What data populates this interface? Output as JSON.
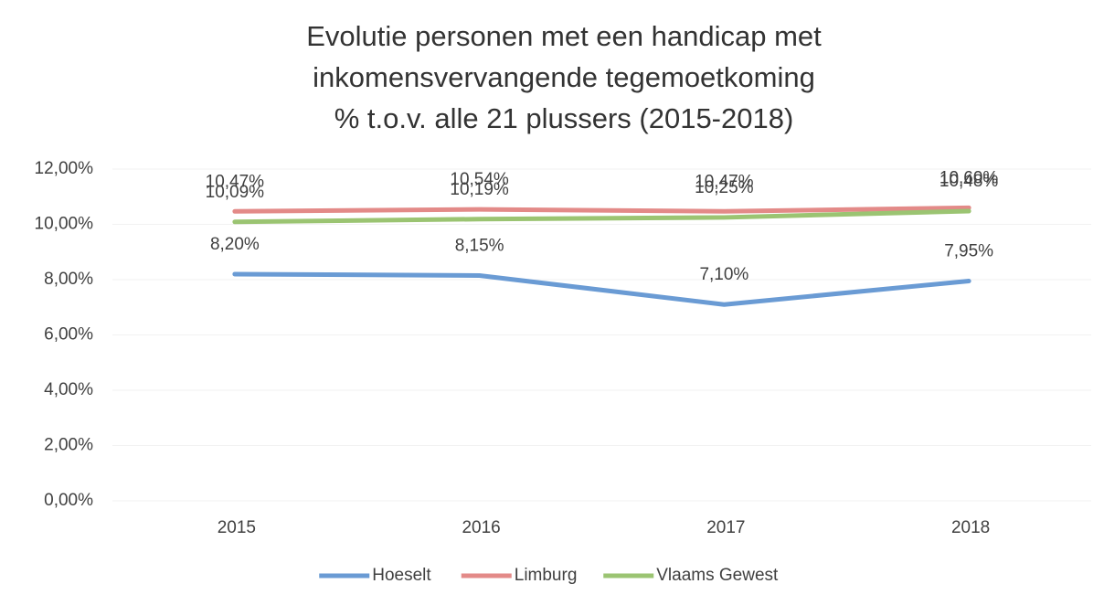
{
  "chart_data": {
    "type": "line",
    "title": [
      "Evolutie personen met een handicap met",
      "inkomensvervangende tegemoetkoming",
      "% t.o.v. alle 21 plussers (2015-2018)"
    ],
    "categories": [
      "2015",
      "2016",
      "2017",
      "2018"
    ],
    "series": [
      {
        "name": "Hoeselt",
        "color": "#6a9bd4",
        "values": [
          8.2,
          8.15,
          7.1,
          7.95
        ],
        "value_labels": [
          "8,20%",
          "8,15%",
          "7,10%",
          "7,95%"
        ]
      },
      {
        "name": "Limburg",
        "color": "#e38a88",
        "values": [
          10.47,
          10.54,
          10.47,
          10.6
        ],
        "value_labels": [
          "10,47%",
          "10,54%",
          "10,47%",
          "10,60%"
        ]
      },
      {
        "name": "Vlaams Gewest",
        "color": "#9bc472",
        "values": [
          10.09,
          10.19,
          10.25,
          10.48
        ],
        "value_labels": [
          "10,09%",
          "10,19%",
          "10,25%",
          "10,48%"
        ]
      }
    ],
    "ylim": [
      0,
      12
    ],
    "yticks": [
      {
        "value": 0,
        "label": "0,00%"
      },
      {
        "value": 2,
        "label": "2,00%"
      },
      {
        "value": 4,
        "label": "4,00%"
      },
      {
        "value": 6,
        "label": "6,00%"
      },
      {
        "value": 8,
        "label": "8,00%"
      },
      {
        "value": 10,
        "label": "10,00%"
      },
      {
        "value": 12,
        "label": "12,00%"
      }
    ],
    "grid": true,
    "legend": "bottom"
  }
}
